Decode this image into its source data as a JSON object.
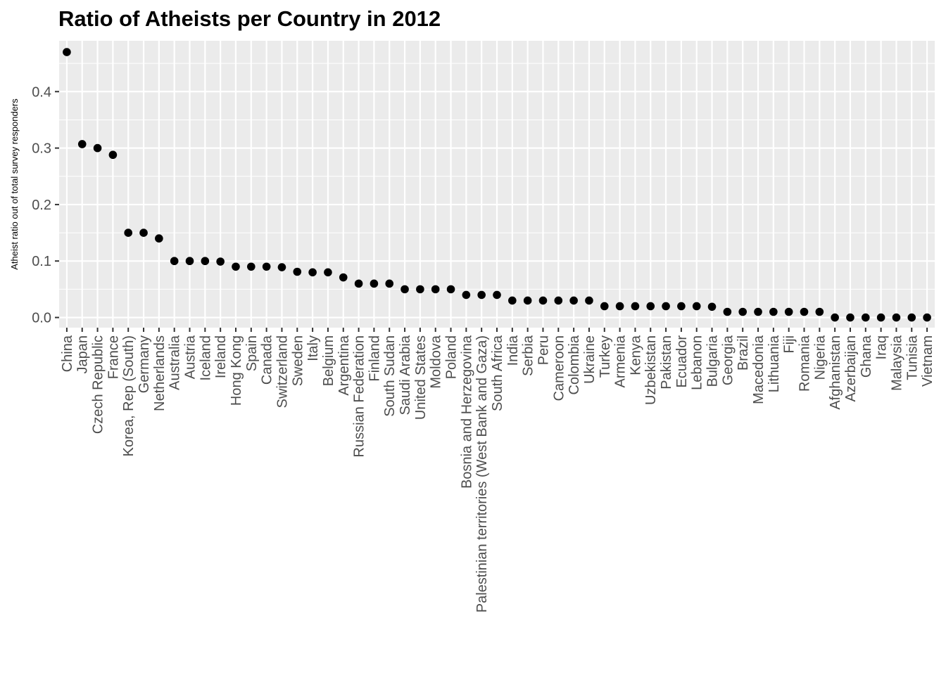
{
  "chart_data": {
    "type": "scatter",
    "title": "Ratio of Atheists per Country in 2012",
    "xlabel": "",
    "ylabel": "Atheist ratio out of total survey responders",
    "ylim": [
      -0.018,
      0.49
    ],
    "yticks": [
      0.0,
      0.1,
      0.2,
      0.3,
      0.4
    ],
    "ytick_labels": [
      "0.0",
      "0.1",
      "0.2",
      "0.3",
      "0.4"
    ],
    "grid": true,
    "legend": "none",
    "colors": {
      "panel": "#ebebeb",
      "grid": "#ffffff",
      "point": "#000000",
      "tick": "#333333",
      "tick_label": "#4d4d4d"
    },
    "categories": [
      "China",
      "Japan",
      "Czech Republic",
      "France",
      "Korea, Rep (South)",
      "Germany",
      "Netherlands",
      "Australia",
      "Austria",
      "Iceland",
      "Ireland",
      "Hong Kong",
      "Spain",
      "Canada",
      "Switzerland",
      "Sweden",
      "Italy",
      "Belgium",
      "Argentina",
      "Russian Federation",
      "Finland",
      "South Sudan",
      "Saudi Arabia",
      "United States",
      "Moldova",
      "Poland",
      "Bosnia and Herzegovina",
      "Palestinian territories (West Bank and Gaza)",
      "South Africa",
      "India",
      "Serbia",
      "Peru",
      "Cameroon",
      "Colombia",
      "Ukraine",
      "Turkey",
      "Armenia",
      "Kenya",
      "Uzbekistan",
      "Pakistan",
      "Ecuador",
      "Lebanon",
      "Bulgaria",
      "Georgia",
      "Brazil",
      "Macedonia",
      "Lithuania",
      "Fiji",
      "Romania",
      "Nigeria",
      "Afghanistan",
      "Azerbaijan",
      "Ghana",
      "Iraq",
      "Malaysia",
      "Tunisia",
      "Vietnam"
    ],
    "values": [
      0.47,
      0.307,
      0.3,
      0.288,
      0.15,
      0.15,
      0.14,
      0.1,
      0.1,
      0.1,
      0.099,
      0.09,
      0.09,
      0.09,
      0.089,
      0.081,
      0.08,
      0.08,
      0.071,
      0.06,
      0.06,
      0.06,
      0.05,
      0.05,
      0.05,
      0.05,
      0.04,
      0.04,
      0.04,
      0.03,
      0.03,
      0.03,
      0.03,
      0.03,
      0.03,
      0.02,
      0.02,
      0.02,
      0.02,
      0.02,
      0.02,
      0.02,
      0.019,
      0.01,
      0.01,
      0.01,
      0.01,
      0.01,
      0.01,
      0.01,
      0.0,
      0.0,
      0.0,
      0.0,
      0.0,
      0.0,
      0.0
    ]
  }
}
